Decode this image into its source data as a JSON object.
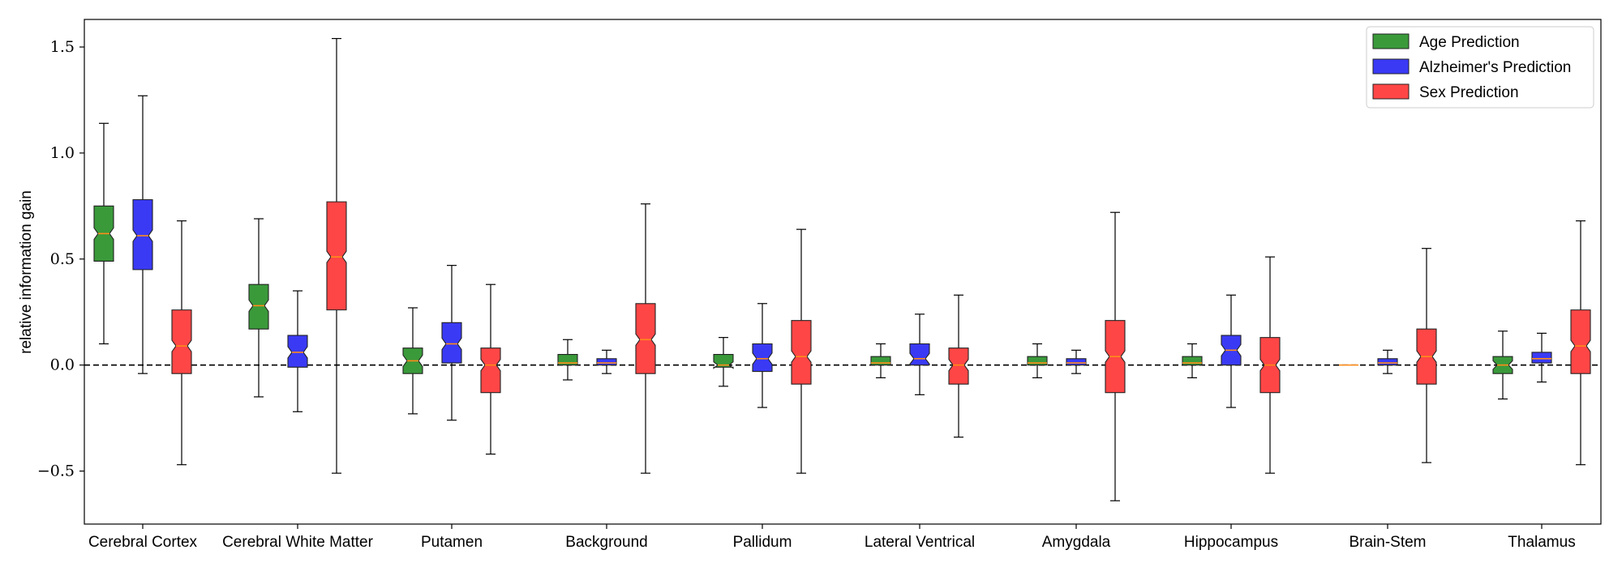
{
  "chart_data": {
    "type": "box",
    "ylabel": "relative information gain",
    "ylim": [
      -0.75,
      1.63
    ],
    "yticks": [
      -0.5,
      0.0,
      0.5,
      1.0,
      1.5
    ],
    "ytick_labels": [
      "−0.5",
      "0.0",
      "0.5",
      "1.0",
      "1.5"
    ],
    "reference_line": 0.0,
    "legend_position": "top-right",
    "categories": [
      "Cerebral Cortex",
      "Cerebral White Matter",
      "Putamen",
      "Background",
      "Pallidum",
      "Lateral Ventrical",
      "Amygdala",
      "Hippocampus",
      "Brain-Stem",
      "Thalamus"
    ],
    "series": [
      {
        "name": "Age Prediction",
        "color": "#3a9a3a",
        "boxes": [
          {
            "whislo": 0.1,
            "q1": 0.49,
            "med": 0.62,
            "q3": 0.75,
            "whishi": 1.14
          },
          {
            "whislo": -0.15,
            "q1": 0.17,
            "med": 0.28,
            "q3": 0.38,
            "whishi": 0.69
          },
          {
            "whislo": -0.23,
            "q1": -0.04,
            "med": 0.02,
            "q3": 0.08,
            "whishi": 0.27
          },
          {
            "whislo": -0.07,
            "q1": 0.0,
            "med": 0.01,
            "q3": 0.05,
            "whishi": 0.12
          },
          {
            "whislo": -0.1,
            "q1": -0.01,
            "med": 0.0,
            "q3": 0.05,
            "whishi": 0.13
          },
          {
            "whislo": -0.06,
            "q1": 0.0,
            "med": 0.01,
            "q3": 0.04,
            "whishi": 0.1
          },
          {
            "whislo": -0.06,
            "q1": 0.0,
            "med": 0.01,
            "q3": 0.04,
            "whishi": 0.1
          },
          {
            "whislo": -0.06,
            "q1": 0.0,
            "med": 0.01,
            "q3": 0.04,
            "whishi": 0.1
          },
          {
            "whislo": 0.0,
            "q1": 0.0,
            "med": 0.0,
            "q3": 0.0,
            "whishi": 0.0
          },
          {
            "whislo": -0.16,
            "q1": -0.04,
            "med": 0.0,
            "q3": 0.04,
            "whishi": 0.16
          }
        ]
      },
      {
        "name": "Alzheimer's Prediction",
        "color": "#3a3af5",
        "boxes": [
          {
            "whislo": -0.04,
            "q1": 0.45,
            "med": 0.61,
            "q3": 0.78,
            "whishi": 1.27
          },
          {
            "whislo": -0.22,
            "q1": -0.01,
            "med": 0.06,
            "q3": 0.14,
            "whishi": 0.35
          },
          {
            "whislo": -0.26,
            "q1": 0.01,
            "med": 0.1,
            "q3": 0.2,
            "whishi": 0.47
          },
          {
            "whislo": -0.04,
            "q1": 0.0,
            "med": 0.01,
            "q3": 0.03,
            "whishi": 0.07
          },
          {
            "whislo": -0.2,
            "q1": -0.03,
            "med": 0.03,
            "q3": 0.1,
            "whishi": 0.29
          },
          {
            "whislo": -0.14,
            "q1": 0.0,
            "med": 0.03,
            "q3": 0.1,
            "whishi": 0.24
          },
          {
            "whislo": -0.04,
            "q1": 0.0,
            "med": 0.01,
            "q3": 0.03,
            "whishi": 0.07
          },
          {
            "whislo": -0.2,
            "q1": 0.0,
            "med": 0.07,
            "q3": 0.14,
            "whishi": 0.33
          },
          {
            "whislo": -0.04,
            "q1": 0.0,
            "med": 0.01,
            "q3": 0.03,
            "whishi": 0.07
          },
          {
            "whislo": -0.08,
            "q1": 0.01,
            "med": 0.03,
            "q3": 0.06,
            "whishi": 0.15
          }
        ]
      },
      {
        "name": "Sex Prediction",
        "color": "#ff4646",
        "boxes": [
          {
            "whislo": -0.47,
            "q1": -0.04,
            "med": 0.09,
            "q3": 0.26,
            "whishi": 0.68
          },
          {
            "whislo": -0.51,
            "q1": 0.26,
            "med": 0.51,
            "q3": 0.77,
            "whishi": 1.54
          },
          {
            "whislo": -0.42,
            "q1": -0.13,
            "med": 0.0,
            "q3": 0.08,
            "whishi": 0.38
          },
          {
            "whislo": -0.51,
            "q1": -0.04,
            "med": 0.12,
            "q3": 0.29,
            "whishi": 0.76
          },
          {
            "whislo": -0.51,
            "q1": -0.09,
            "med": 0.04,
            "q3": 0.21,
            "whishi": 0.64
          },
          {
            "whislo": -0.34,
            "q1": -0.09,
            "med": 0.0,
            "q3": 0.08,
            "whishi": 0.33
          },
          {
            "whislo": -0.64,
            "q1": -0.13,
            "med": 0.04,
            "q3": 0.21,
            "whishi": 0.72
          },
          {
            "whislo": -0.51,
            "q1": -0.13,
            "med": 0.0,
            "q3": 0.13,
            "whishi": 0.51
          },
          {
            "whislo": -0.46,
            "q1": -0.09,
            "med": 0.04,
            "q3": 0.17,
            "whishi": 0.55
          },
          {
            "whislo": -0.47,
            "q1": -0.04,
            "med": 0.09,
            "q3": 0.26,
            "whishi": 0.68
          }
        ]
      }
    ]
  }
}
